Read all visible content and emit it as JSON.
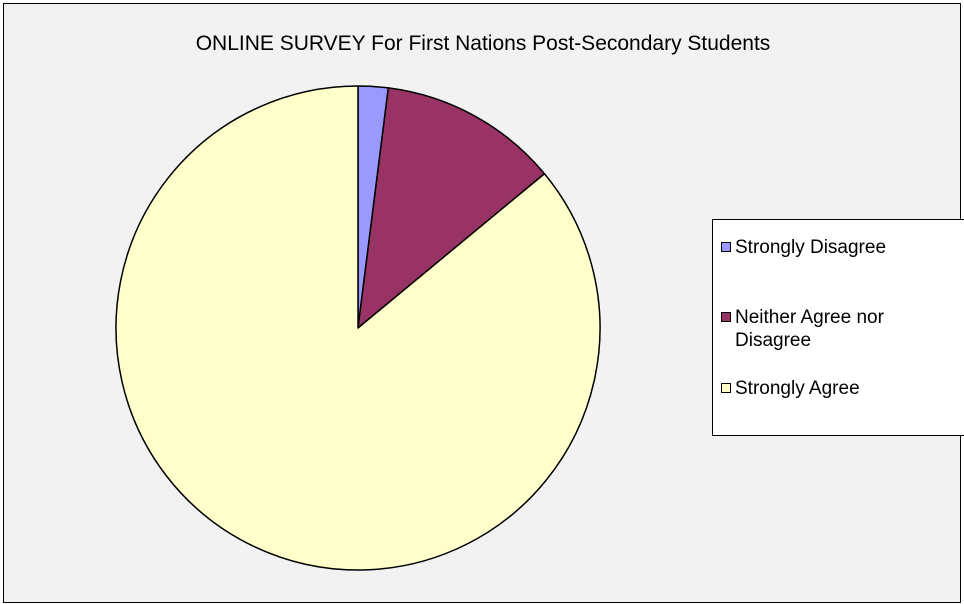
{
  "chart_data": {
    "type": "pie",
    "title": "ONLINE SURVEY For First Nations Post-Secondary Students",
    "categories": [
      "Strongly Disagree",
      "Neither Agree nor Disagree",
      "Strongly Agree"
    ],
    "values": [
      2,
      12,
      86
    ],
    "colors": [
      "#9999ff",
      "#993366",
      "#ffffcc"
    ],
    "legend_position": "right",
    "start_angle": "12 o'clock, clockwise"
  }
}
